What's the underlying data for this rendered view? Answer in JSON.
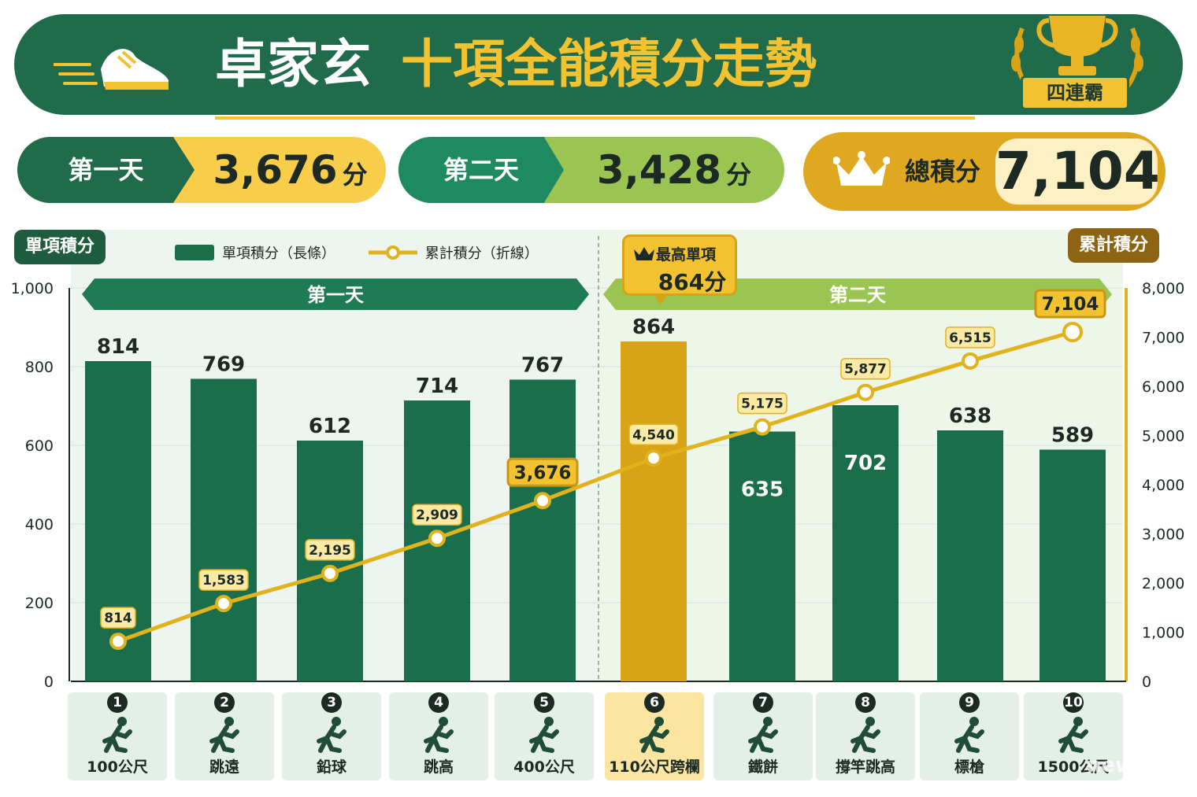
{
  "header": {
    "name": "卓家玄",
    "title_rest": "十項全能積分走勢",
    "badge": "四連霸"
  },
  "summary": {
    "day1_label": "第一天",
    "day1_value": "3,676",
    "day2_label": "第二天",
    "day2_value": "3,428",
    "unit": "分",
    "total_label": "總積分",
    "total_value": "7,104"
  },
  "chart_data": {
    "type": "bar",
    "categories": [
      "100公尺",
      "跳遠",
      "鉛球",
      "跳高",
      "400公尺",
      "110公尺跨欄",
      "鐵餅",
      "撐竿跳高",
      "標槍",
      "1500公尺"
    ],
    "series": [
      {
        "name": "單項積分（長條）",
        "type": "bar",
        "axis": "left",
        "values": [
          814,
          769,
          612,
          714,
          767,
          864,
          635,
          702,
          638,
          589
        ]
      },
      {
        "name": "累計積分（折線）",
        "type": "line",
        "axis": "right",
        "values": [
          814,
          1583,
          2195,
          2909,
          3676,
          4540,
          5175,
          5877,
          6515,
          7104
        ]
      }
    ],
    "bar_labels": [
      "814",
      "769",
      "612",
      "714",
      "767",
      "864",
      "635",
      "702",
      "638",
      "589"
    ],
    "line_labels": [
      "814",
      "1,583",
      "2,195",
      "2,909",
      "3,676",
      "4,540",
      "5,175",
      "5,877",
      "6,515",
      "7,104"
    ],
    "highlight_index": 5,
    "left_axis": {
      "title": "單項積分",
      "ylim": [
        0,
        1000
      ],
      "ticks": [
        "0",
        "200",
        "400",
        "600",
        "800",
        "1,000"
      ]
    },
    "right_axis": {
      "title": "累計積分",
      "ylim": [
        0,
        8000
      ],
      "ticks": [
        "0",
        "1,000",
        "2,000",
        "3,000",
        "4,000",
        "5,000",
        "6,000",
        "7,000",
        "8,000"
      ]
    },
    "day_groups": [
      {
        "label": "第一天",
        "from": 0,
        "to": 4
      },
      {
        "label": "第二天",
        "from": 5,
        "to": 9
      }
    ],
    "event_numbers": [
      "1",
      "2",
      "3",
      "4",
      "5",
      "6",
      "7",
      "8",
      "9",
      "10"
    ],
    "best_callout": {
      "line1": "最高單項",
      "line2": "864分"
    },
    "colors": {
      "bar": "#1b6e4c",
      "highlight": "#d8a316",
      "line": "#e0b21c",
      "day1": "#1f7a56",
      "day2": "#9bc552"
    },
    "grid": true,
    "legend_position": "top-left"
  },
  "legend": {
    "bar": "單項積分（長條）",
    "line": "累計積分（折線）"
  },
  "watermark": "news"
}
